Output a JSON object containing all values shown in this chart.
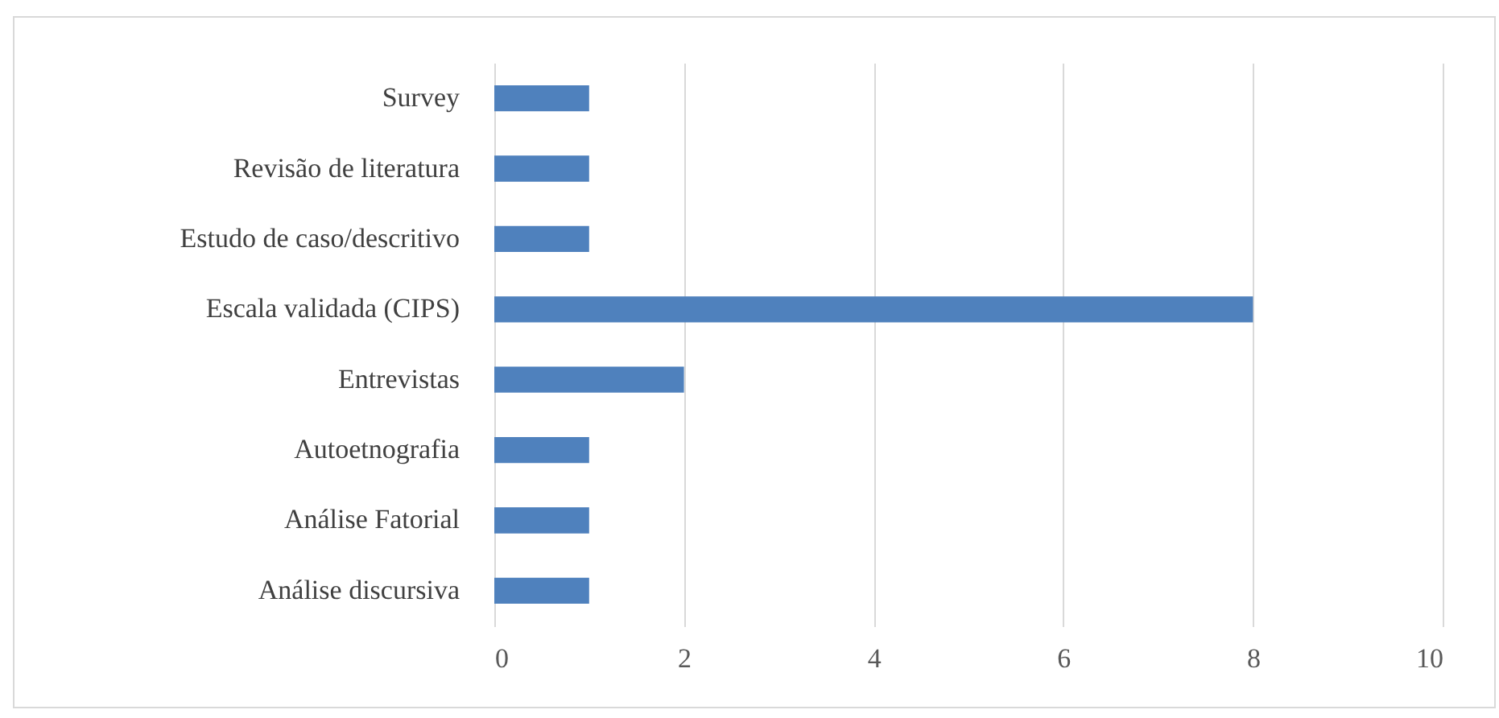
{
  "chart_data": {
    "type": "bar",
    "orientation": "horizontal",
    "categories": [
      "Survey",
      "Revisão de literatura",
      "Estudo de caso/descritivo",
      "Escala validada (CIPS)",
      "Entrevistas",
      "Autoetnografia",
      "Análise Fatorial",
      "Análise discursiva"
    ],
    "values": [
      1,
      1,
      1,
      8,
      2,
      1,
      1,
      1
    ],
    "color": "#4f81bd",
    "xlim": [
      0,
      10
    ],
    "xticks": [
      0,
      2,
      4,
      6,
      8,
      10
    ],
    "grid": "x"
  }
}
